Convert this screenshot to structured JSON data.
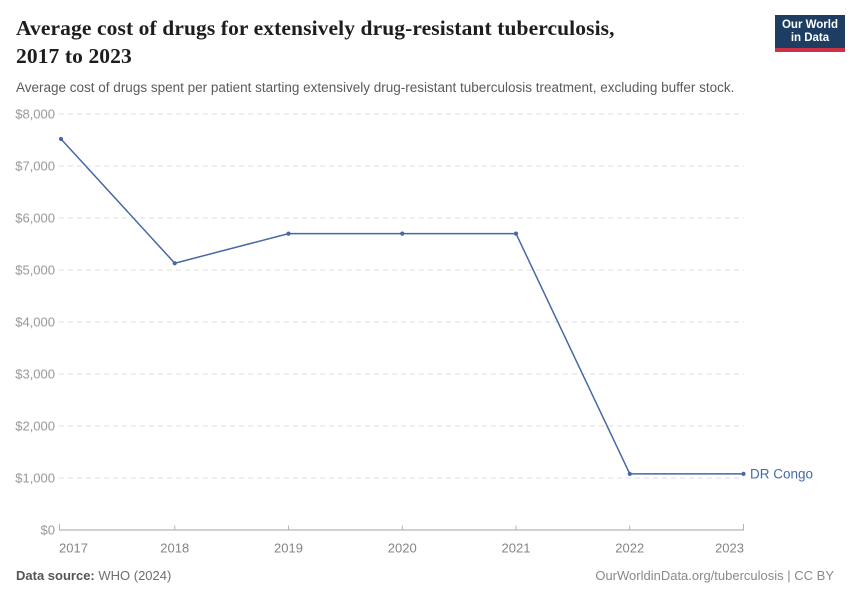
{
  "header": {
    "title_line1": "Average cost of drugs for extensively drug-resistant tuberculosis,",
    "title_line2": "2017 to 2023",
    "subtitle": "Average cost of drugs spent per patient starting extensively drug-resistant tuberculosis treatment, excluding buffer stock."
  },
  "logo": {
    "line1": "Our World",
    "line2": "in Data",
    "bg_color": "#1d3d63",
    "accent_color": "#cb3345"
  },
  "chart_data": {
    "type": "line",
    "title": "Average cost of drugs for extensively drug-resistant tuberculosis, 2017 to 2023",
    "x": [
      2017,
      2018,
      2019,
      2020,
      2021,
      2022,
      2023
    ],
    "series": [
      {
        "name": "DR Congo",
        "color": "#4868a5",
        "values": [
          7520,
          5130,
          5700,
          5700,
          5700,
          1080,
          1080
        ]
      }
    ],
    "ylim": [
      0,
      8000
    ],
    "ytick_step": 1000,
    "ytick_prefix": "$",
    "grid": "horizontal-dashed",
    "legend": "end-of-line-label",
    "colors": {
      "gridline": "#dddddd",
      "axis_line": "#a3a3a3",
      "tick_mark": "#b5b5b5",
      "ytick_label": "#999999",
      "xtick_label": "#858585"
    }
  },
  "footer": {
    "source_label": "Data source:",
    "source_value": " WHO (2024)",
    "right_text": "OurWorldinData.org/tuberculosis | CC BY"
  }
}
